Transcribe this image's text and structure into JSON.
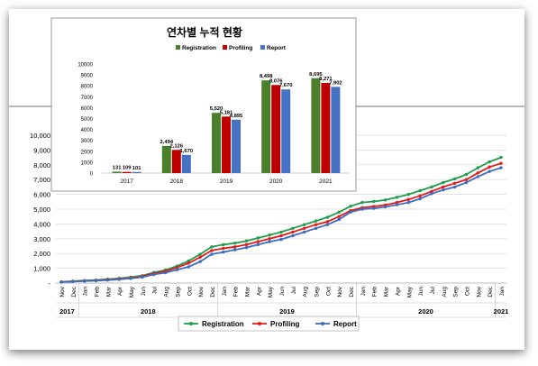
{
  "chart_data": [
    {
      "type": "line",
      "title": "",
      "xlabel": "",
      "ylabel": "",
      "ylim": [
        0,
        10000
      ],
      "y_ticks": [
        "-",
        "1,000",
        "2,000",
        "3,000",
        "4,000",
        "5,000",
        "6,000",
        "7,000",
        "8,000",
        "9,000",
        "10,000"
      ],
      "grid": true,
      "legend_position": "bottom",
      "months": [
        "Nov",
        "Dec",
        "Jan",
        "Feb",
        "Mar",
        "Apr",
        "May",
        "Jun",
        "Jul",
        "Aug",
        "Sep",
        "Oct",
        "Nov",
        "Dec",
        "Jan",
        "Feb",
        "Mar",
        "Apr",
        "May",
        "Jun",
        "Jul",
        "Aug",
        "Sep",
        "Oct",
        "Nov",
        "Dec",
        "Jan",
        "Feb",
        "Mar",
        "Apr",
        "May",
        "Jun",
        "Jul",
        "Aug",
        "Sep",
        "Oct",
        "Nov",
        "Dec",
        "Jan"
      ],
      "years": [
        {
          "label": "2017",
          "start": 0,
          "end": 1
        },
        {
          "label": "2018",
          "start": 2,
          "end": 13
        },
        {
          "label": "2019",
          "start": 14,
          "end": 25
        },
        {
          "label": "2020",
          "start": 26,
          "end": 37
        },
        {
          "label": "2021",
          "start": 38,
          "end": 38
        }
      ],
      "series": [
        {
          "name": "Registration",
          "color": "#1e9e4a",
          "values": [
            80,
            130,
            170,
            200,
            260,
            320,
            400,
            500,
            720,
            880,
            1150,
            1500,
            1950,
            2450,
            2600,
            2700,
            2850,
            3050,
            3250,
            3450,
            3700,
            3950,
            4200,
            4450,
            4800,
            5200,
            5450,
            5520,
            5620,
            5800,
            6000,
            6250,
            6500,
            6800,
            7050,
            7350,
            7800,
            8200,
            8500
          ]
        },
        {
          "name": "Profiling",
          "color": "#e31b1b",
          "values": [
            70,
            110,
            150,
            180,
            230,
            280,
            350,
            450,
            650,
            800,
            1050,
            1350,
            1750,
            2200,
            2350,
            2450,
            2600,
            2800,
            3000,
            3200,
            3450,
            3700,
            3950,
            4150,
            4500,
            4900,
            5100,
            5180,
            5280,
            5450,
            5650,
            5900,
            6200,
            6500,
            6750,
            7000,
            7450,
            7850,
            8100
          ]
        },
        {
          "name": "Report",
          "color": "#3d6dc0",
          "values": [
            60,
            100,
            130,
            160,
            200,
            250,
            310,
            400,
            580,
            700,
            900,
            1100,
            1450,
            1950,
            2100,
            2250,
            2400,
            2600,
            2800,
            2950,
            3200,
            3450,
            3700,
            3950,
            4300,
            4800,
            5000,
            5050,
            5150,
            5300,
            5450,
            5700,
            6050,
            6300,
            6500,
            6800,
            7200,
            7550,
            7800
          ]
        }
      ]
    },
    {
      "type": "bar",
      "title": "연차별 누적 현황",
      "xlabel": "",
      "ylabel": "",
      "ylim": [
        0,
        10000
      ],
      "y_ticks": [
        "0",
        "1000",
        "2000",
        "3000",
        "4000",
        "5000",
        "6000",
        "7000",
        "8000",
        "9000",
        "10000"
      ],
      "legend_position": "top",
      "categories": [
        "2017",
        "2018",
        "2019",
        "2020",
        "2021"
      ],
      "series": [
        {
          "name": "Registration",
          "color": "#4a7f2c",
          "values": [
            131,
            2494,
            5520,
            8498,
            8695
          ],
          "labels": [
            "131",
            "2,494",
            "5,520",
            "8,498",
            "8,695"
          ]
        },
        {
          "name": "Profiling",
          "color": "#c00000",
          "values": [
            109,
            2126,
            5181,
            8076,
            8271
          ],
          "labels": [
            "109",
            "2,126",
            "5,181",
            "8,076",
            "8,271"
          ]
        },
        {
          "name": "Report",
          "color": "#4472c4",
          "values": [
            101,
            1670,
            4895,
            7670,
            7902
          ],
          "labels": [
            "101",
            "1,670",
            "4,895",
            "7,670",
            "7,902"
          ]
        }
      ]
    }
  ]
}
